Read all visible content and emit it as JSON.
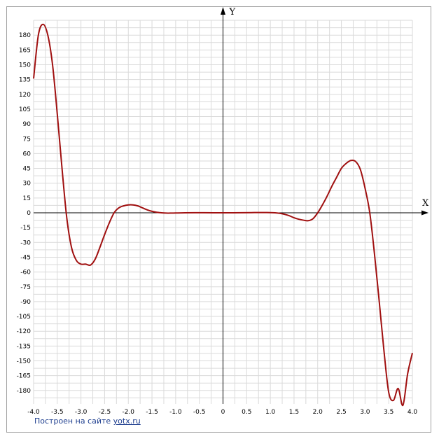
{
  "chart_data": {
    "type": "line",
    "title": "",
    "xlabel": "X",
    "ylabel": "Y",
    "xlim": [
      -4.0,
      4.0
    ],
    "ylim": [
      -195,
      195
    ],
    "x_ticks": [
      "-4.0",
      "-3.5",
      "-3.0",
      "-2.5",
      "-2.0",
      "-1.5",
      "-1.0",
      "-0.5",
      "0",
      "0.5",
      "1.0",
      "1.5",
      "2.0",
      "2.5",
      "3.0",
      "3.5",
      "4.0"
    ],
    "x_tick_values": [
      -4.0,
      -3.5,
      -3.0,
      -2.5,
      -2.0,
      -1.5,
      -1.0,
      -0.5,
      0,
      0.5,
      1.0,
      1.5,
      2.0,
      2.5,
      3.0,
      3.5,
      4.0
    ],
    "y_ticks": [
      "180",
      "165",
      "150",
      "135",
      "120",
      "105",
      "90",
      "75",
      "60",
      "45",
      "30",
      "15",
      "0",
      "-15",
      "-30",
      "-45",
      "-60",
      "-75",
      "-90",
      "-105",
      "-120",
      "-135",
      "-150",
      "-165",
      "-180"
    ],
    "y_tick_values": [
      180,
      165,
      150,
      135,
      120,
      105,
      90,
      75,
      60,
      45,
      30,
      15,
      0,
      -15,
      -30,
      -45,
      -60,
      -75,
      -90,
      -105,
      -120,
      -135,
      -150,
      -165,
      -180
    ],
    "grid": true,
    "series": [
      {
        "color": "#a01010",
        "x": [
          -4.0,
          -3.9,
          -3.8,
          -3.7,
          -3.6,
          -3.5,
          -3.4,
          -3.3,
          -3.2,
          -3.1,
          -3.0,
          -2.9,
          -2.8,
          -2.7,
          -2.6,
          -2.5,
          -2.4,
          -2.3,
          -2.2,
          -2.1,
          -2.0,
          -1.9,
          -1.8,
          -1.7,
          -1.6,
          -1.5,
          -1.4,
          -1.3,
          -1.2,
          -1.1,
          -1.0,
          -0.8,
          -0.6,
          -0.4,
          -0.2,
          0.0,
          0.2,
          0.4,
          0.6,
          0.8,
          1.0,
          1.1,
          1.2,
          1.3,
          1.4,
          1.5,
          1.6,
          1.7,
          1.8,
          1.9,
          2.0,
          2.1,
          2.2,
          2.3,
          2.4,
          2.5,
          2.6,
          2.7,
          2.8,
          2.9,
          3.0,
          3.1,
          3.2,
          3.3,
          3.4,
          3.5,
          3.6,
          3.7,
          3.8,
          3.9,
          4.0
        ],
        "y": [
          136,
          180,
          191,
          180,
          150,
          100,
          45,
          -5,
          -35,
          -48,
          -52,
          -52,
          -53,
          -47,
          -35,
          -22,
          -10,
          0,
          5,
          7,
          8,
          8,
          7,
          5,
          3,
          1.5,
          0.5,
          0,
          -0.3,
          -0.3,
          -0.2,
          0,
          0.1,
          0.1,
          0,
          0,
          0,
          0.1,
          0.2,
          0.3,
          0.2,
          0,
          -0.5,
          -1.5,
          -3,
          -5,
          -6.5,
          -7.5,
          -8,
          -6,
          0,
          8,
          17,
          27,
          36,
          45,
          50,
          53,
          52,
          44,
          25,
          0,
          -42,
          -90,
          -140,
          -182,
          -190,
          -178,
          -195,
          -163,
          -142
        ]
      }
    ]
  },
  "footer": {
    "text": "Построен на сайте ",
    "link": "yotx.ru"
  }
}
